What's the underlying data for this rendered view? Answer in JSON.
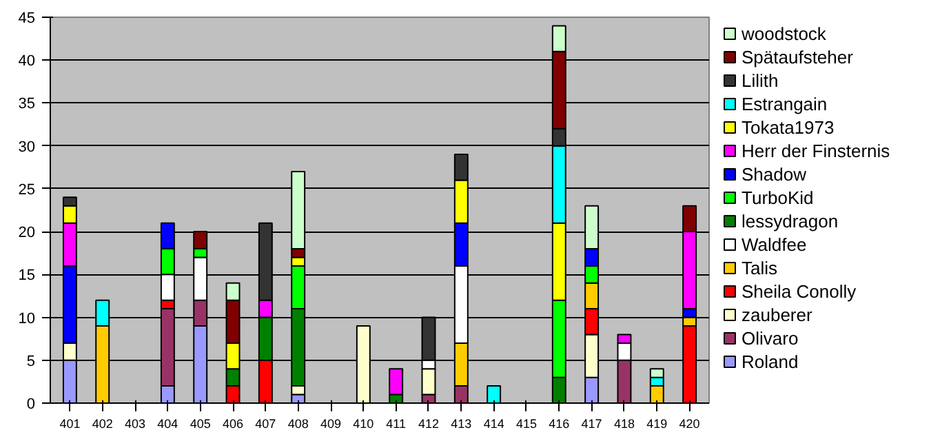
{
  "chart_data": {
    "type": "bar",
    "stacked": true,
    "categories": [
      "401",
      "402",
      "403",
      "404",
      "405",
      "406",
      "407",
      "408",
      "409",
      "410",
      "411",
      "412",
      "413",
      "414",
      "415",
      "416",
      "417",
      "418",
      "419",
      "420"
    ],
    "ylim": [
      0,
      45
    ],
    "yticks": [
      0,
      5,
      10,
      15,
      20,
      25,
      30,
      35,
      40,
      45
    ],
    "grid": "y",
    "legend": "right",
    "series": [
      {
        "name": "Roland",
        "color": "#9999ff",
        "values": [
          5,
          null,
          null,
          2,
          9,
          null,
          null,
          1,
          null,
          null,
          null,
          null,
          null,
          null,
          null,
          null,
          3,
          null,
          null,
          null
        ]
      },
      {
        "name": "Olivaro",
        "color": "#993366",
        "values": [
          null,
          null,
          null,
          9,
          3,
          null,
          null,
          null,
          null,
          null,
          null,
          1,
          2,
          null,
          null,
          null,
          null,
          5,
          null,
          null
        ]
      },
      {
        "name": "zauberer",
        "color": "#ffffcc",
        "values": [
          2,
          null,
          null,
          null,
          null,
          null,
          null,
          1,
          null,
          9,
          null,
          3,
          null,
          null,
          null,
          null,
          5,
          null,
          null,
          null
        ]
      },
      {
        "name": "Sheila Conolly",
        "color": "#ff0000",
        "values": [
          null,
          null,
          null,
          1,
          null,
          2,
          5,
          null,
          null,
          null,
          null,
          null,
          null,
          null,
          null,
          null,
          3,
          null,
          null,
          9
        ]
      },
      {
        "name": "Talis",
        "color": "#ffcc00",
        "values": [
          null,
          9,
          null,
          null,
          null,
          null,
          null,
          null,
          null,
          null,
          null,
          null,
          5,
          null,
          null,
          null,
          3,
          null,
          2,
          1
        ]
      },
      {
        "name": "Waldfee",
        "color": "#ffffff",
        "values": [
          null,
          null,
          null,
          3,
          5,
          null,
          null,
          null,
          null,
          null,
          null,
          1,
          9,
          null,
          null,
          null,
          null,
          2,
          null,
          null
        ]
      },
      {
        "name": "lessydragon",
        "color": "#008000",
        "values": [
          null,
          null,
          null,
          null,
          null,
          2,
          5,
          9,
          null,
          null,
          1,
          null,
          null,
          null,
          null,
          3,
          null,
          null,
          null,
          null
        ]
      },
      {
        "name": "TurboKid",
        "color": "#00ff00",
        "values": [
          null,
          null,
          null,
          3,
          1,
          null,
          null,
          5,
          null,
          null,
          null,
          null,
          null,
          null,
          null,
          9,
          2,
          null,
          null,
          null
        ]
      },
      {
        "name": "Shadow",
        "color": "#0000ff",
        "values": [
          9,
          null,
          null,
          3,
          null,
          null,
          null,
          null,
          null,
          null,
          null,
          null,
          5,
          null,
          null,
          null,
          2,
          null,
          null,
          1
        ]
      },
      {
        "name": "Herr der Finsternis",
        "color": "#ff00ff",
        "values": [
          5,
          null,
          null,
          null,
          null,
          null,
          2,
          null,
          null,
          null,
          3,
          null,
          null,
          null,
          null,
          null,
          null,
          1,
          null,
          9
        ]
      },
      {
        "name": "Tokata1973",
        "color": "#ffff00",
        "values": [
          2,
          null,
          null,
          null,
          null,
          3,
          null,
          1,
          null,
          null,
          null,
          null,
          5,
          null,
          null,
          9,
          null,
          null,
          null,
          null
        ]
      },
      {
        "name": "Estrangain",
        "color": "#00ffff",
        "values": [
          null,
          3,
          null,
          null,
          null,
          null,
          null,
          null,
          null,
          null,
          null,
          null,
          null,
          2,
          null,
          9,
          null,
          null,
          1,
          null
        ]
      },
      {
        "name": "Lilith",
        "color": "#333333",
        "values": [
          1,
          null,
          null,
          null,
          null,
          null,
          9,
          null,
          null,
          null,
          null,
          5,
          3,
          null,
          null,
          2,
          null,
          null,
          null,
          null
        ]
      },
      {
        "name": "Spätaufsteher",
        "color": "#800000",
        "values": [
          null,
          null,
          null,
          null,
          2,
          5,
          null,
          1,
          null,
          null,
          null,
          null,
          null,
          null,
          null,
          9,
          null,
          null,
          null,
          3
        ]
      },
      {
        "name": "woodstock",
        "color": "#ccffcc",
        "values": [
          null,
          null,
          null,
          null,
          null,
          2,
          null,
          9,
          null,
          null,
          null,
          null,
          null,
          null,
          null,
          3,
          5,
          null,
          1,
          null
        ]
      }
    ]
  }
}
